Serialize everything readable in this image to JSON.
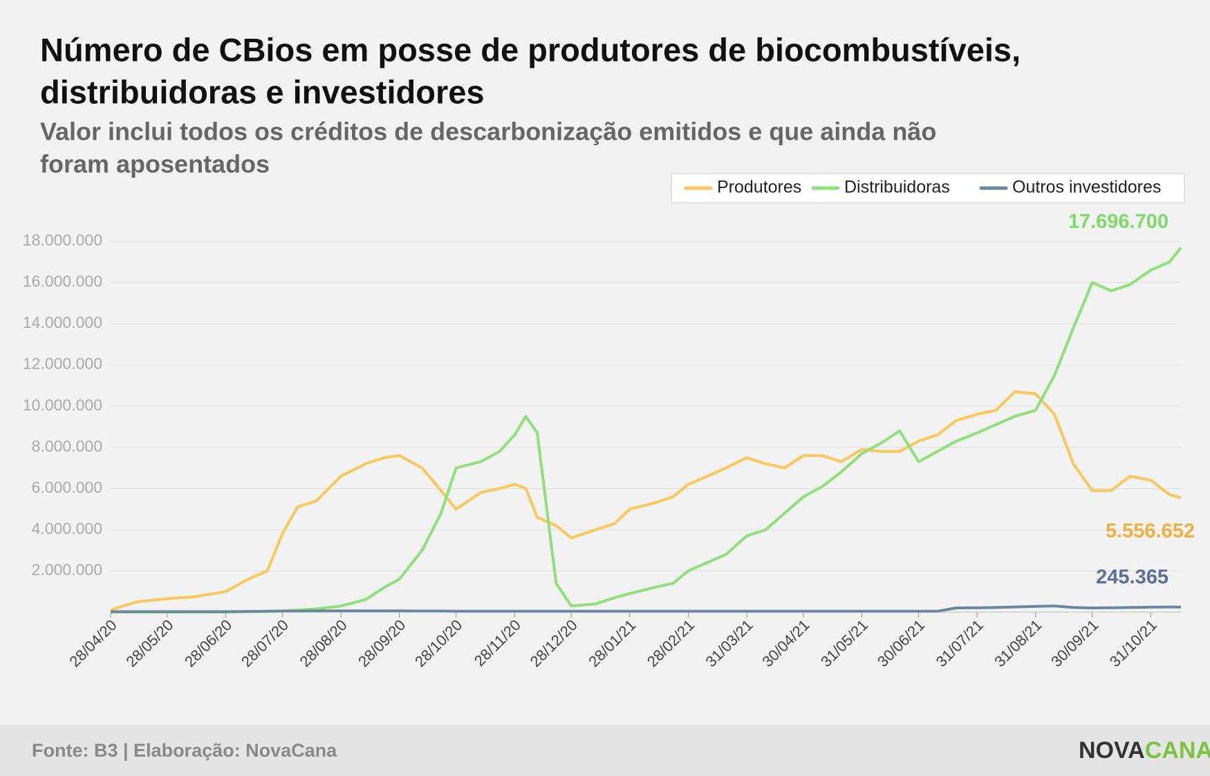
{
  "chart_data": {
    "type": "line",
    "title": [
      "Número de CBios em posse de produtores de biocombustíveis,",
      "distribuidoras e investidores"
    ],
    "subtitle": [
      "Valor inclui todos os créditos de descarbonização emitidos e que ainda não",
      "foram aposentados"
    ],
    "source": "Fonte: B3 | Elaboração: NovaCana",
    "logo": [
      "NOVA",
      "CANA"
    ],
    "x": [
      "28/04/20",
      "12/05/20",
      "28/05/20",
      "12/06/20",
      "28/06/20",
      "10/07/20",
      "20/07/20",
      "28/07/20",
      "05/08/20",
      "15/08/20",
      "28/08/20",
      "10/09/20",
      "20/09/20",
      "28/09/20",
      "10/10/20",
      "20/10/20",
      "28/10/20",
      "10/11/20",
      "20/11/20",
      "28/11/20",
      "04/12/20",
      "10/12/20",
      "20/12/20",
      "28/12/20",
      "10/01/21",
      "20/01/21",
      "28/01/21",
      "10/02/21",
      "20/02/21",
      "28/02/21",
      "10/03/21",
      "20/03/21",
      "31/03/21",
      "10/04/21",
      "20/04/21",
      "30/04/21",
      "10/05/21",
      "20/05/21",
      "31/05/21",
      "10/06/21",
      "20/06/21",
      "30/06/21",
      "10/07/21",
      "20/07/21",
      "31/07/21",
      "10/08/21",
      "20/08/21",
      "31/08/21",
      "10/09/21",
      "20/09/21",
      "30/09/21",
      "10/10/21",
      "20/10/21",
      "31/10/21",
      "10/11/21",
      "16/11/21"
    ],
    "series": [
      {
        "name": "Produtores",
        "color": "#fcc75a",
        "label_color": "#f0b040",
        "end_label": "5.556.652",
        "values": [
          100000,
          500000,
          650000,
          750000,
          1000000,
          1600000,
          2000000,
          3800000,
          5100000,
          5400000,
          6600000,
          7200000,
          7500000,
          7600000,
          7000000,
          5900000,
          5000000,
          5800000,
          6000000,
          6200000,
          6000000,
          4600000,
          4200000,
          3600000,
          4000000,
          4300000,
          5000000,
          5300000,
          5600000,
          6200000,
          6600000,
          7000000,
          7500000,
          7200000,
          7000000,
          7600000,
          7600000,
          7300000,
          7900000,
          7800000,
          7800000,
          8300000,
          8600000,
          9300000,
          9600000,
          9800000,
          10700000,
          10600000,
          9600000,
          7200000,
          5900000,
          5900000,
          6600000,
          6400000,
          5700000,
          5556652
        ]
      },
      {
        "name": "Distribuidoras",
        "color": "#8fdf7a",
        "label_color": "#7dd96a",
        "end_label": "17.696.700",
        "values": [
          0,
          0,
          0,
          0,
          0,
          20000,
          30000,
          50000,
          100000,
          150000,
          300000,
          600000,
          1200000,
          1600000,
          3000000,
          4800000,
          7000000,
          7300000,
          7800000,
          8600000,
          9500000,
          8700000,
          1400000,
          300000,
          400000,
          700000,
          900000,
          1200000,
          1400000,
          2000000,
          2400000,
          2800000,
          3700000,
          4000000,
          4800000,
          5600000,
          6100000,
          6800000,
          7700000,
          8200000,
          8800000,
          7300000,
          7800000,
          8300000,
          8700000,
          9100000,
          9500000,
          9800000,
          11500000,
          13800000,
          16000000,
          15600000,
          15900000,
          16600000,
          17000000,
          17696700
        ]
      },
      {
        "name": "Outros investidores",
        "color": "#6a86a0",
        "label_color": "#5a6e9a",
        "end_label": "245.365",
        "values": [
          20000,
          20000,
          20000,
          20000,
          20000,
          30000,
          40000,
          50000,
          50000,
          60000,
          60000,
          60000,
          60000,
          60000,
          50000,
          50000,
          40000,
          40000,
          40000,
          40000,
          40000,
          40000,
          40000,
          40000,
          40000,
          40000,
          40000,
          40000,
          40000,
          40000,
          40000,
          40000,
          40000,
          40000,
          40000,
          40000,
          40000,
          40000,
          40000,
          40000,
          40000,
          40000,
          40000,
          200000,
          210000,
          220000,
          250000,
          280000,
          300000,
          220000,
          200000,
          210000,
          220000,
          240000,
          250000,
          245365
        ]
      }
    ],
    "xlim": [
      "28/04/20",
      "16/11/21"
    ],
    "xticks": [
      "28/04/20",
      "28/05/20",
      "28/06/20",
      "28/07/20",
      "28/08/20",
      "28/09/20",
      "28/10/20",
      "28/11/20",
      "28/12/20",
      "28/01/21",
      "28/02/21",
      "31/03/21",
      "30/04/21",
      "31/05/21",
      "30/06/21",
      "31/07/21",
      "31/08/21",
      "30/09/21",
      "31/10/21"
    ],
    "ylim": [
      0,
      18000000
    ],
    "yticks": [
      {
        "value": 2000000,
        "label": "2.000.000"
      },
      {
        "value": 4000000,
        "label": "4.000.000"
      },
      {
        "value": 6000000,
        "label": "6.000.000"
      },
      {
        "value": 8000000,
        "label": "8.000.000"
      },
      {
        "value": 10000000,
        "label": "10.000.000"
      },
      {
        "value": 12000000,
        "label": "12.000.000"
      },
      {
        "value": 14000000,
        "label": "14.000.000"
      },
      {
        "value": 16000000,
        "label": "16.000.000"
      },
      {
        "value": 18000000,
        "label": "18.000.000"
      }
    ],
    "grid": true,
    "legend": "top-right"
  }
}
